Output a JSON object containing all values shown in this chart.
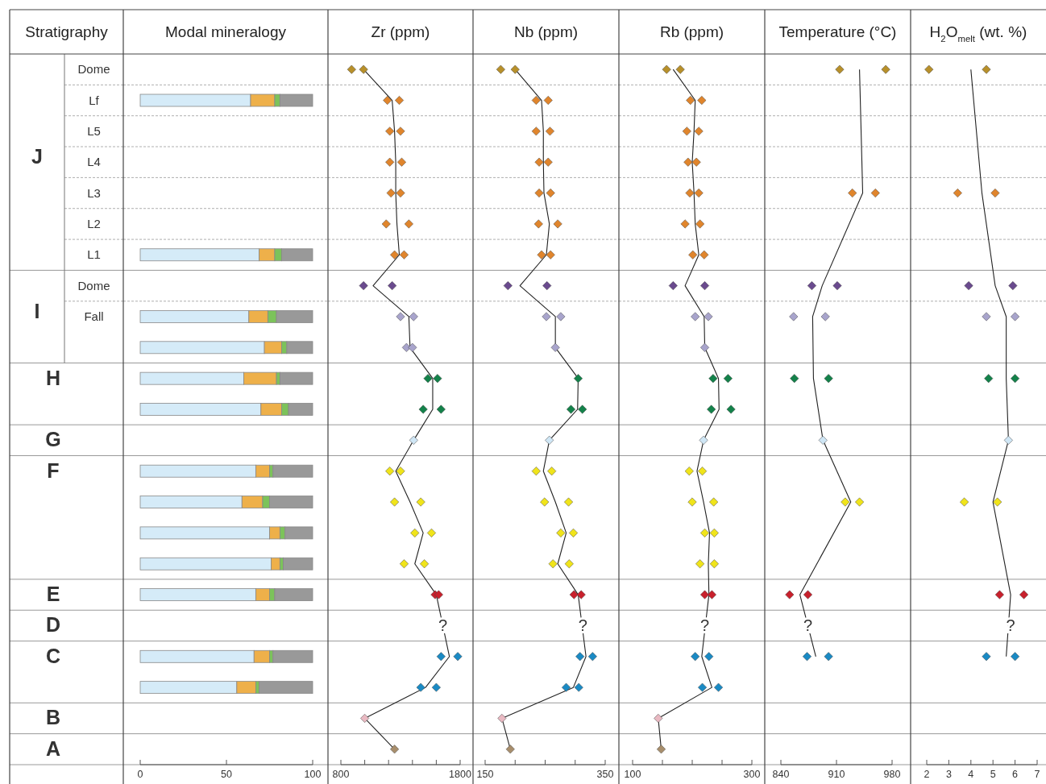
{
  "chart_data": [
    {
      "type": "other",
      "title": "Stratigraphy",
      "categories": [
        "Dome",
        "Lf",
        "L5",
        "L4",
        "L3",
        "L2",
        "L1",
        "Dome",
        "Fall",
        null,
        "H",
        null,
        "G",
        "F",
        null,
        null,
        null,
        "E",
        "D",
        "C",
        null,
        "B",
        "A"
      ],
      "annotations": [
        {
          "text": "J",
          "y": "L4"
        },
        {
          "text": "I",
          "y": "Fall"
        }
      ]
    },
    {
      "type": "bar",
      "orientation": "horizontal",
      "stacked": true,
      "grid": "y",
      "title": "Modal mineralogy",
      "tick_labels": "x",
      "categories": [
        "Dome",
        "Lf",
        "L5",
        "L4",
        "L3",
        "L2",
        "L1",
        "Dome",
        "Fall",
        null,
        "H",
        null,
        "G",
        "F",
        null,
        null,
        null,
        "E",
        "D",
        "C",
        null,
        "B",
        "A"
      ],
      "xlim": [
        0,
        100
      ],
      "xticks": [
        0,
        50,
        100
      ],
      "series": [
        {
          "color": "#d5ebf8",
          "values": [
            null,
            64,
            null,
            null,
            null,
            null,
            69,
            null,
            63,
            72,
            60,
            70,
            null,
            67,
            59,
            75,
            76,
            67,
            null,
            66,
            56,
            null,
            null
          ]
        },
        {
          "color": "#eeb04a",
          "values": [
            null,
            14,
            null,
            null,
            null,
            null,
            9,
            null,
            11,
            10,
            19,
            12,
            null,
            8,
            12,
            6,
            5,
            8,
            null,
            9,
            11,
            null,
            null
          ]
        },
        {
          "color": "#7cc35a",
          "values": [
            null,
            3,
            null,
            null,
            null,
            null,
            4,
            null,
            5,
            3,
            2,
            4,
            null,
            2,
            4,
            3,
            2,
            3,
            null,
            2,
            2,
            null,
            null
          ]
        },
        {
          "color": "#999999",
          "values": [
            null,
            19,
            null,
            null,
            null,
            null,
            18,
            null,
            21,
            15,
            19,
            14,
            null,
            23,
            25,
            16,
            17,
            22,
            null,
            23,
            31,
            null,
            null
          ]
        }
      ]
    },
    {
      "type": "scatter",
      "orientation": "horizontal",
      "grid": "y",
      "title": "Zr (ppm)",
      "tick_labels": "x",
      "marker": "diamond",
      "categories": [
        "Dome",
        "Lf",
        "L5",
        "L4",
        "L3",
        "L2",
        "L1",
        "Dome",
        "Fall",
        null,
        "H",
        null,
        "G",
        "F",
        null,
        null,
        null,
        "E",
        "D",
        "C",
        null,
        "B",
        "A"
      ],
      "xlim": [
        800,
        1800
      ],
      "xticks": [
        800,
        {
          "value": 1000,
          "label": null
        },
        {
          "value": 1200,
          "label": null
        },
        {
          "value": 1400,
          "label": null
        },
        {
          "value": 1600,
          "label": null
        },
        1800
      ],
      "series": [
        {
          "type": "scatter",
          "colors": [
            "#b8902a",
            "#e0852c",
            "#e0852c",
            "#e0852c",
            "#e0852c",
            "#e0852c",
            "#e0852c",
            "#6a4a8e",
            "#a8a4cc",
            "#a8a4cc",
            "#13824a",
            "#13824a",
            "#cfe6f5",
            "#f0e41a",
            "#f0e41a",
            "#f0e41a",
            "#f0e41a",
            "#c8202c",
            null,
            "#1a8ac4",
            "#1a8ac4",
            "#e9b9c2",
            "#a88e6c"
          ],
          "values": [
            890,
            1190,
            1210,
            1210,
            1220,
            1180,
            1250,
            990,
            1300,
            1350,
            1530,
            1490,
            1410,
            1210,
            1250,
            1420,
            1330,
            1590,
            null,
            1640,
            1470,
            1000,
            1250
          ]
        },
        {
          "type": "scatter",
          "colors": [
            "#b8902a",
            "#e0852c",
            "#e0852c",
            "#e0852c",
            "#e0852c",
            "#e0852c",
            "#e0852c",
            "#6a4a8e",
            "#a8a4cc",
            "#a8a4cc",
            "#13824a",
            "#13824a",
            null,
            "#f0e41a",
            "#f0e41a",
            "#f0e41a",
            "#f0e41a",
            "#c8202c",
            null,
            "#1a8ac4",
            "#1a8ac4",
            null,
            null
          ],
          "values": [
            990,
            1290,
            1300,
            1310,
            1300,
            1370,
            1330,
            1230,
            1410,
            1400,
            1610,
            1640,
            null,
            1300,
            1470,
            1560,
            1500,
            1620,
            null,
            1780,
            1600,
            null,
            null
          ]
        },
        {
          "type": "line",
          "marker": "none",
          "color": "#222222",
          "values": [
            990,
            1230,
            1250,
            1260,
            1260,
            1270,
            1290,
            1070,
            1370,
            1380,
            1570,
            1570,
            1410,
            1260,
            1380,
            1490,
            1420,
            1600,
            null,
            1710,
            1510,
            1000,
            1250
          ]
        }
      ],
      "annotations": [
        {
          "text": "?",
          "x": 1655,
          "y": "D"
        }
      ]
    },
    {
      "type": "scatter",
      "orientation": "horizontal",
      "grid": "y",
      "title": "Nb (ppm)",
      "tick_labels": "x",
      "marker": "diamond",
      "categories": [
        "Dome",
        "Lf",
        "L5",
        "L4",
        "L3",
        "L2",
        "L1",
        "Dome",
        "Fall",
        null,
        "H",
        null,
        "G",
        "F",
        null,
        null,
        null,
        "E",
        "D",
        "C",
        null,
        "B",
        "A"
      ],
      "xlim": [
        150,
        350
      ],
      "xticks": [
        150,
        {
          "value": 200,
          "label": null
        },
        {
          "value": 250,
          "label": null
        },
        {
          "value": 300,
          "label": null
        },
        350
      ],
      "series": [
        {
          "type": "scatter",
          "colors": [
            "#b8902a",
            "#e0852c",
            "#e0852c",
            "#e0852c",
            "#e0852c",
            "#e0852c",
            "#e0852c",
            "#6a4a8e",
            "#a8a4cc",
            "#a8a4cc",
            "#13824a",
            "#13824a",
            "#cfe6f5",
            "#f0e41a",
            "#f0e41a",
            "#f0e41a",
            "#f0e41a",
            "#c8202c",
            null,
            "#1a8ac4",
            "#1a8ac4",
            "#e9b9c2",
            "#a88e6c"
          ],
          "values": [
            176,
            235,
            235,
            240,
            240,
            239,
            244,
            188,
            252,
            267,
            305,
            293,
            257,
            235,
            249,
            276,
            263,
            298,
            null,
            308,
            285,
            178,
            192
          ]
        },
        {
          "type": "scatter",
          "colors": [
            "#b8902a",
            "#e0852c",
            "#e0852c",
            "#e0852c",
            "#e0852c",
            "#e0852c",
            "#e0852c",
            "#6a4a8e",
            "#a8a4cc",
            null,
            null,
            "#13824a",
            null,
            "#f0e41a",
            "#f0e41a",
            "#f0e41a",
            "#f0e41a",
            "#c8202c",
            null,
            "#1a8ac4",
            "#1a8ac4",
            null,
            null
          ],
          "values": [
            200,
            255,
            258,
            255,
            259,
            271,
            259,
            253,
            276,
            null,
            null,
            312,
            null,
            261,
            289,
            297,
            290,
            310,
            null,
            329,
            306,
            null,
            null
          ]
        },
        {
          "type": "line",
          "marker": "none",
          "color": "#222222",
          "values": [
            200,
            244,
            247,
            247,
            248,
            257,
            252,
            208,
            267,
            267,
            305,
            304,
            257,
            247,
            267,
            285,
            271,
            305,
            null,
            318,
            297,
            178,
            192
          ]
        }
      ],
      "annotations": [
        {
          "text": "?",
          "x": 313,
          "y": "D"
        }
      ]
    },
    {
      "type": "scatter",
      "orientation": "horizontal",
      "grid": "y",
      "title": "Rb (ppm)",
      "tick_labels": "x",
      "marker": "diamond",
      "categories": [
        "Dome",
        "Lf",
        "L5",
        "L4",
        "L3",
        "L2",
        "L1",
        "Dome",
        "Fall",
        null,
        "H",
        null,
        "G",
        "F",
        null,
        null,
        null,
        "E",
        "D",
        "C",
        null,
        "B",
        "A"
      ],
      "xlim": [
        100,
        300
      ],
      "xticks": [
        100,
        {
          "value": 150,
          "label": null
        },
        {
          "value": 200,
          "label": null
        },
        {
          "value": 250,
          "label": null
        },
        300
      ],
      "series": [
        {
          "type": "scatter",
          "colors": [
            "#b8902a",
            "#e0852c",
            "#e0852c",
            "#e0852c",
            "#e0852c",
            "#e0852c",
            "#e0852c",
            "#6a4a8e",
            "#a8a4cc",
            "#a8a4cc",
            "#13824a",
            "#13824a",
            "#cfe6f5",
            "#f0e41a",
            "#f0e41a",
            "#f0e41a",
            "#f0e41a",
            "#c8202c",
            null,
            "#1a8ac4",
            "#1a8ac4",
            "#e9b9c2",
            "#a88e6c"
          ],
          "values": [
            157,
            197,
            191,
            193,
            196,
            188,
            201,
            168,
            205,
            221,
            235,
            232,
            219,
            195,
            200,
            221,
            213,
            221,
            null,
            205,
            217,
            143,
            148
          ]
        },
        {
          "type": "scatter",
          "colors": [
            "#b8902a",
            "#e0852c",
            "#e0852c",
            "#e0852c",
            "#e0852c",
            "#e0852c",
            "#e0852c",
            "#6a4a8e",
            "#a8a4cc",
            null,
            "#13824a",
            "#13824a",
            null,
            "#f0e41a",
            "#f0e41a",
            "#f0e41a",
            "#f0e41a",
            "#c8202c",
            null,
            "#1a8ac4",
            "#1a8ac4",
            null,
            null
          ],
          "values": [
            180,
            216,
            211,
            207,
            211,
            213,
            220,
            221,
            227,
            null,
            260,
            265,
            null,
            217,
            236,
            237,
            237,
            233,
            null,
            228,
            244,
            null,
            null
          ]
        },
        {
          "type": "line",
          "marker": "none",
          "color": "#222222",
          "values": [
            168,
            205,
            203,
            200,
            203,
            205,
            211,
            188,
            220,
            221,
            244,
            245,
            219,
            208,
            219,
            229,
            227,
            228,
            null,
            216,
            233,
            143,
            148
          ]
        }
      ],
      "annotations": [
        {
          "text": "?",
          "x": 221,
          "y": "D"
        }
      ]
    },
    {
      "type": "scatter",
      "orientation": "horizontal",
      "grid": "y",
      "title": "Temperature (°C)",
      "tick_labels": "x",
      "marker": "diamond",
      "categories": [
        "Dome",
        "Lf",
        "L5",
        "L4",
        "L3",
        "L2",
        "L1",
        "Dome",
        "Fall",
        null,
        "H",
        null,
        "G",
        "F",
        null,
        null,
        null,
        "E",
        "D",
        "C",
        null,
        "B",
        "A"
      ],
      "xlim": [
        840,
        980
      ],
      "xticks": [
        840,
        910,
        980
      ],
      "series": [
        {
          "type": "scatter",
          "colors": [
            "#b8902a",
            null,
            null,
            null,
            "#e0852c",
            null,
            null,
            "#6a4a8e",
            "#a8a4cc",
            null,
            "#13824a",
            null,
            "#cfe6f5",
            null,
            "#f0e41a",
            null,
            null,
            "#c8202c",
            null,
            "#1a8ac4",
            null,
            null,
            null
          ],
          "values": [
            914,
            null,
            null,
            null,
            930,
            null,
            null,
            879,
            856,
            null,
            857,
            null,
            893,
            null,
            921,
            null,
            null,
            851,
            null,
            873,
            null,
            null,
            null
          ]
        },
        {
          "type": "scatter",
          "colors": [
            "#b8902a",
            null,
            null,
            null,
            "#e0852c",
            null,
            null,
            "#6a4a8e",
            "#a8a4cc",
            null,
            "#13824a",
            null,
            null,
            null,
            "#f0e41a",
            null,
            null,
            "#c8202c",
            null,
            "#1a8ac4",
            null,
            null,
            null
          ],
          "values": [
            972,
            null,
            null,
            null,
            959,
            null,
            null,
            911,
            896,
            null,
            900,
            null,
            null,
            null,
            939,
            null,
            null,
            874,
            null,
            900,
            null,
            null,
            null
          ]
        },
        {
          "type": "line",
          "marker": "none",
          "color": "#222222",
          "values": [
            939,
            null,
            null,
            null,
            943,
            null,
            null,
            892,
            880,
            null,
            881,
            null,
            893,
            null,
            928,
            null,
            null,
            864,
            null,
            884,
            null,
            null,
            null
          ]
        }
      ],
      "annotations": [
        {
          "text": "?",
          "x": 874,
          "y": "D"
        }
      ]
    },
    {
      "type": "scatter",
      "orientation": "horizontal",
      "grid": "y",
      "title": "H$_{2}$O$_{melt}$ (wt. %)",
      "tick_labels": "x",
      "marker": "diamond",
      "categories": [
        "Dome",
        "Lf",
        "L5",
        "L4",
        "L3",
        "L2",
        "L1",
        "Dome",
        "Fall",
        null,
        "H",
        null,
        "G",
        "F",
        null,
        null,
        null,
        "E",
        "D",
        "C",
        null,
        "B",
        "A"
      ],
      "xlim": [
        2,
        7
      ],
      "xticks": [
        2,
        3,
        4,
        5,
        6,
        7
      ],
      "series": [
        {
          "type": "scatter",
          "colors": [
            "#b8902a",
            null,
            null,
            null,
            "#e0852c",
            null,
            null,
            "#6a4a8e",
            "#a8a4cc",
            null,
            "#13824a",
            null,
            "#cfe6f5",
            null,
            "#f0e41a",
            null,
            null,
            "#c8202c",
            null,
            "#1a8ac4",
            null,
            null,
            null
          ],
          "values": [
            2.1,
            null,
            null,
            null,
            3.4,
            null,
            null,
            3.9,
            4.7,
            null,
            4.8,
            null,
            5.7,
            null,
            3.7,
            null,
            null,
            5.3,
            null,
            4.7,
            null,
            null,
            null
          ]
        },
        {
          "type": "scatter",
          "colors": [
            "#b8902a",
            null,
            null,
            null,
            "#e0852c",
            null,
            null,
            "#6a4a8e",
            "#a8a4cc",
            null,
            "#13824a",
            null,
            null,
            null,
            "#f0e41a",
            null,
            null,
            "#c8202c",
            null,
            "#1a8ac4",
            null,
            null,
            null
          ],
          "values": [
            4.7,
            null,
            null,
            null,
            5.1,
            null,
            null,
            5.9,
            6.0,
            null,
            6.0,
            null,
            null,
            null,
            5.2,
            null,
            null,
            6.4,
            null,
            6.0,
            null,
            null,
            null
          ]
        },
        {
          "type": "line",
          "marker": "none",
          "color": "#222222",
          "values": [
            4.0,
            null,
            null,
            null,
            4.5,
            null,
            null,
            5.1,
            5.6,
            null,
            5.6,
            null,
            5.7,
            null,
            5.0,
            null,
            null,
            5.8,
            null,
            5.6,
            null,
            null,
            null
          ]
        }
      ],
      "annotations": [
        {
          "text": "?",
          "x": 5.8,
          "y": "D"
        }
      ]
    }
  ]
}
